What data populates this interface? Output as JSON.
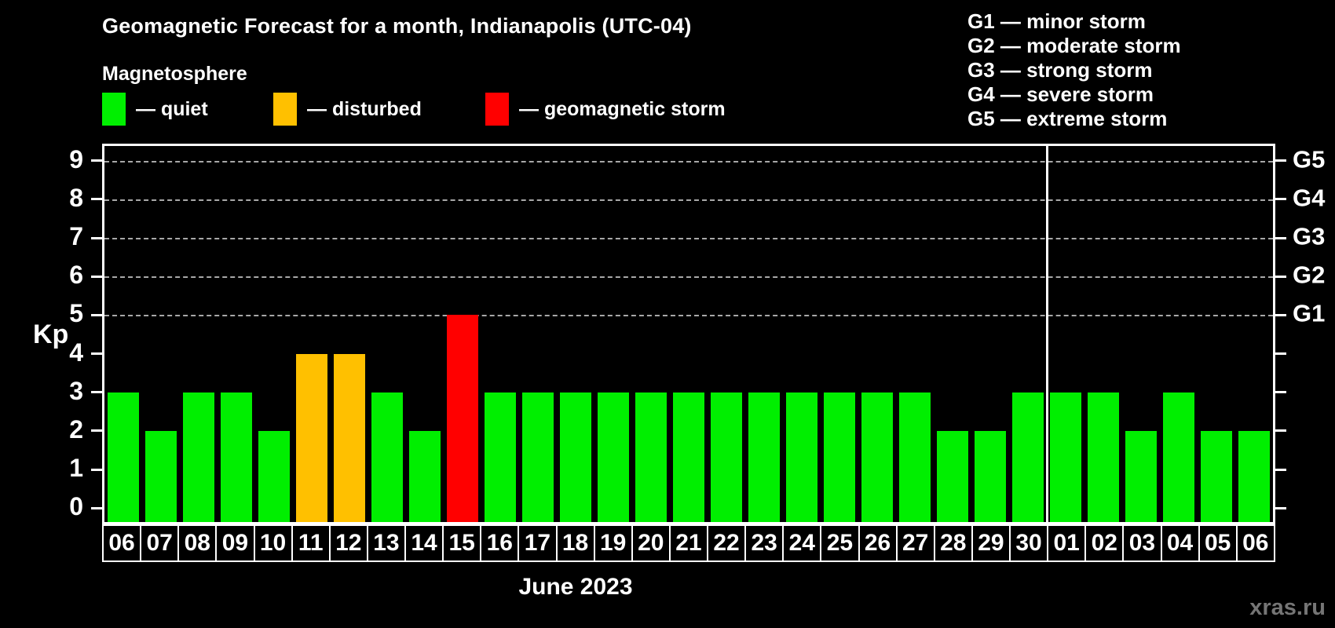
{
  "title": "Geomagnetic Forecast for a month, Indianapolis (UTC-04)",
  "subtitle": "Magnetosphere",
  "legend": {
    "quiet": {
      "label": "— quiet",
      "color": "#00ef00"
    },
    "disturbed": {
      "label": "— disturbed",
      "color": "#ffc000"
    },
    "storm": {
      "label": "— geomagnetic storm",
      "color": "#ff0000"
    }
  },
  "g_scale_legend": [
    "G1 — minor storm",
    "G2 — moderate storm",
    "G3 — strong storm",
    "G4 — severe storm",
    "G5 — extreme storm"
  ],
  "y_axis": {
    "label": "Kp",
    "ticks": [
      0,
      1,
      2,
      3,
      4,
      5,
      6,
      7,
      8,
      9
    ]
  },
  "right_axis": {
    "labels": [
      {
        "value": 5,
        "label": "G1"
      },
      {
        "value": 6,
        "label": "G2"
      },
      {
        "value": 7,
        "label": "G3"
      },
      {
        "value": 8,
        "label": "G4"
      },
      {
        "value": 9,
        "label": "G5"
      }
    ]
  },
  "x_axis": {
    "label": "June 2023"
  },
  "watermark": "xras.ru",
  "chart_data": {
    "type": "bar",
    "title": "Geomagnetic Forecast for a month, Indianapolis (UTC-04)",
    "xlabel": "June 2023",
    "ylabel": "Kp",
    "ylim": [
      0,
      9
    ],
    "grid_levels": [
      5,
      6,
      7,
      8,
      9
    ],
    "legend_position": "top",
    "categories": [
      "06",
      "07",
      "08",
      "09",
      "10",
      "11",
      "12",
      "13",
      "14",
      "15",
      "16",
      "17",
      "18",
      "19",
      "20",
      "21",
      "22",
      "23",
      "24",
      "25",
      "26",
      "27",
      "28",
      "29",
      "30",
      "01",
      "02",
      "03",
      "04",
      "05",
      "06"
    ],
    "values": [
      3,
      2,
      3,
      3,
      2,
      4,
      4,
      3,
      2,
      5,
      3,
      3,
      3,
      3,
      3,
      3,
      3,
      3,
      3,
      3,
      3,
      3,
      2,
      2,
      3,
      3,
      3,
      2,
      3,
      2,
      2
    ],
    "statuses": [
      "quiet",
      "quiet",
      "quiet",
      "quiet",
      "quiet",
      "disturbed",
      "disturbed",
      "quiet",
      "quiet",
      "storm",
      "quiet",
      "quiet",
      "quiet",
      "quiet",
      "quiet",
      "quiet",
      "quiet",
      "quiet",
      "quiet",
      "quiet",
      "quiet",
      "quiet",
      "quiet",
      "quiet",
      "quiet",
      "quiet",
      "quiet",
      "quiet",
      "quiet",
      "quiet",
      "quiet"
    ],
    "month_separator_after_index": 24
  }
}
